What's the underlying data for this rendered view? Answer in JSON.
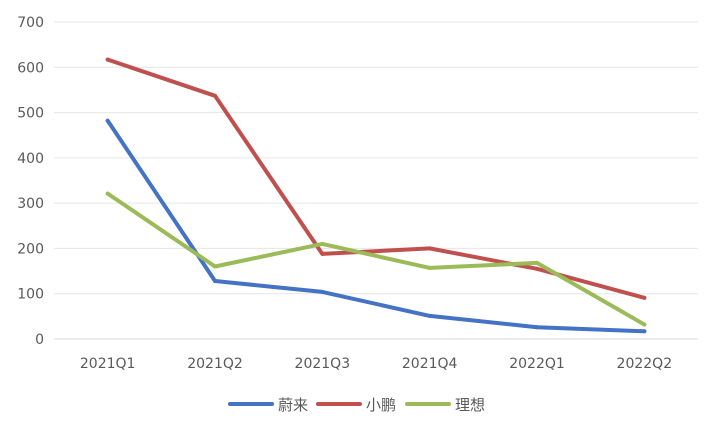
{
  "chart_data": {
    "type": "line",
    "title": "",
    "xlabel": "",
    "ylabel": "",
    "categories": [
      "2021Q1",
      "2021Q2",
      "2021Q3",
      "2021Q4",
      "2022Q1",
      "2022Q2"
    ],
    "ylim": [
      0,
      700
    ],
    "yticks": [
      0,
      100,
      200,
      300,
      400,
      500,
      600,
      700
    ],
    "grid": true,
    "legend_position": "bottom",
    "series": [
      {
        "name": "蔚来",
        "color": "#4472c4",
        "values": [
          482,
          128,
          104,
          51,
          26,
          17
        ]
      },
      {
        "name": "小鹏",
        "color": "#c0504d",
        "values": [
          617,
          537,
          188,
          200,
          155,
          91
        ]
      },
      {
        "name": "理想",
        "color": "#9bbb59",
        "values": [
          321,
          160,
          210,
          157,
          168,
          32
        ]
      }
    ]
  }
}
